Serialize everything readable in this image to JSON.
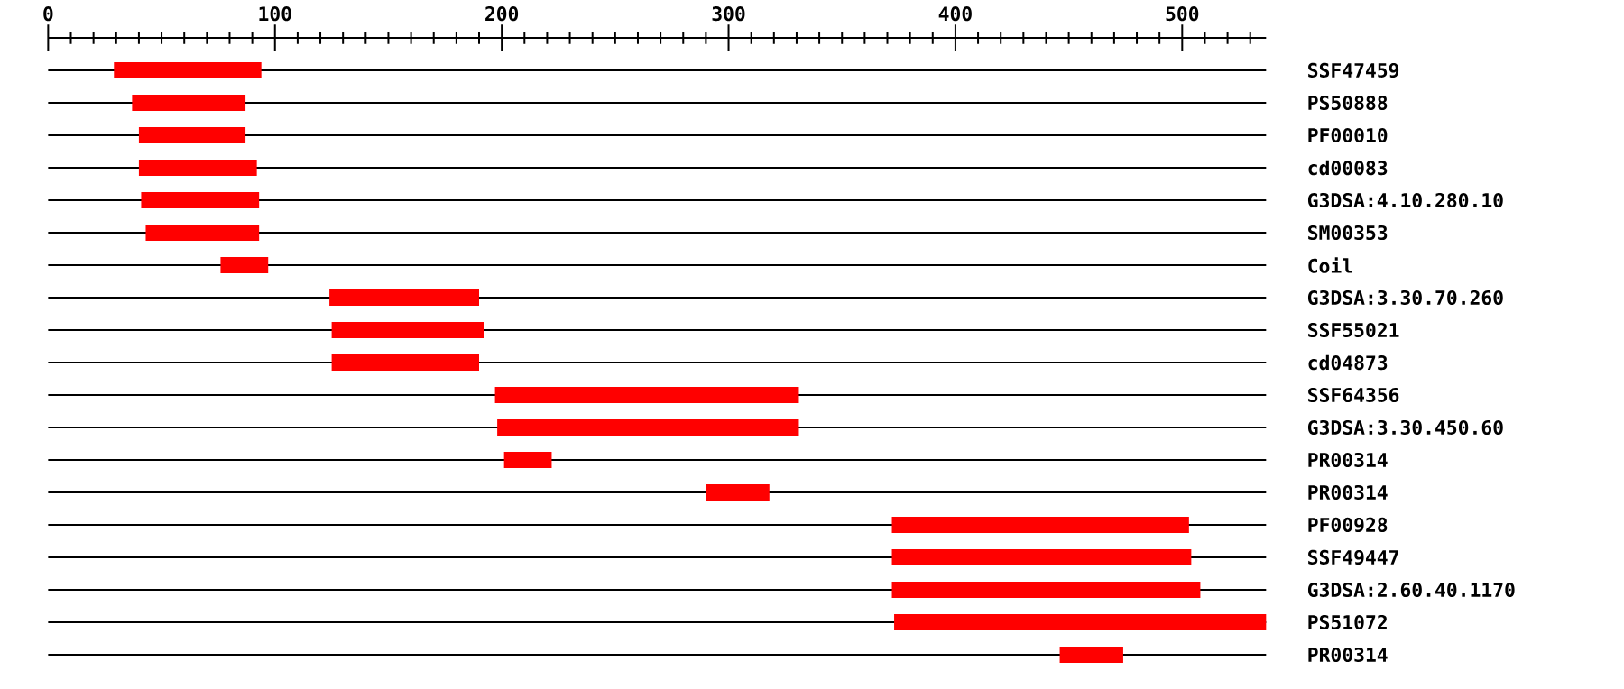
{
  "chart_data": {
    "type": "bar",
    "orientation": "horizontal",
    "color": "#ff0000",
    "grid": "y",
    "categories": [
      "SSF47459",
      "PS50888",
      "PF00010",
      "cd00083",
      "G3DSA:4.10.280.10",
      "SM00353",
      "Coil",
      "G3DSA:3.30.70.260",
      "SSF55021",
      "cd04873",
      "SSF64356",
      "G3DSA:3.30.450.60",
      "PR00314",
      "PR00314",
      "PF00928",
      "SSF49447",
      "G3DSA:2.60.40.1170",
      "PS51072",
      "PR00314"
    ],
    "base": [
      29,
      37,
      40,
      40,
      41,
      43,
      76,
      124,
      125,
      125,
      197,
      198,
      201,
      290,
      372,
      372,
      372,
      373,
      446
    ],
    "values": [
      65,
      50,
      47,
      52,
      52,
      50,
      21,
      66,
      67,
      65,
      134,
      133,
      21,
      28,
      131,
      132,
      136,
      164,
      28
    ],
    "xlim": [
      0,
      537
    ],
    "xticks": [
      0,
      {
        "value": 10,
        "label": null
      },
      {
        "value": 20,
        "label": null
      },
      {
        "value": 30,
        "label": null
      },
      {
        "value": 40,
        "label": null
      },
      {
        "value": 50,
        "label": null
      },
      {
        "value": 60,
        "label": null
      },
      {
        "value": 70,
        "label": null
      },
      {
        "value": 80,
        "label": null
      },
      {
        "value": 90,
        "label": null
      },
      100,
      {
        "value": 110,
        "label": null
      },
      {
        "value": 120,
        "label": null
      },
      {
        "value": 130,
        "label": null
      },
      {
        "value": 140,
        "label": null
      },
      {
        "value": 150,
        "label": null
      },
      {
        "value": 160,
        "label": null
      },
      {
        "value": 170,
        "label": null
      },
      {
        "value": 180,
        "label": null
      },
      {
        "value": 190,
        "label": null
      },
      200,
      {
        "value": 210,
        "label": null
      },
      {
        "value": 220,
        "label": null
      },
      {
        "value": 230,
        "label": null
      },
      {
        "value": 240,
        "label": null
      },
      {
        "value": 250,
        "label": null
      },
      {
        "value": 260,
        "label": null
      },
      {
        "value": 270,
        "label": null
      },
      {
        "value": 280,
        "label": null
      },
      {
        "value": 290,
        "label": null
      },
      300,
      {
        "value": 310,
        "label": null
      },
      {
        "value": 320,
        "label": null
      },
      {
        "value": 330,
        "label": null
      },
      {
        "value": 340,
        "label": null
      },
      {
        "value": 350,
        "label": null
      },
      {
        "value": 360,
        "label": null
      },
      {
        "value": 370,
        "label": null
      },
      {
        "value": 380,
        "label": null
      },
      {
        "value": 390,
        "label": null
      },
      400,
      {
        "value": 410,
        "label": null
      },
      {
        "value": 420,
        "label": null
      },
      {
        "value": 430,
        "label": null
      },
      {
        "value": 440,
        "label": null
      },
      {
        "value": 450,
        "label": null
      },
      {
        "value": 460,
        "label": null
      },
      {
        "value": 470,
        "label": null
      },
      {
        "value": 480,
        "label": null
      },
      {
        "value": 490,
        "label": null
      },
      500,
      {
        "value": 510,
        "label": null
      },
      {
        "value": 520,
        "label": null
      },
      {
        "value": 530,
        "label": null
      }
    ]
  }
}
